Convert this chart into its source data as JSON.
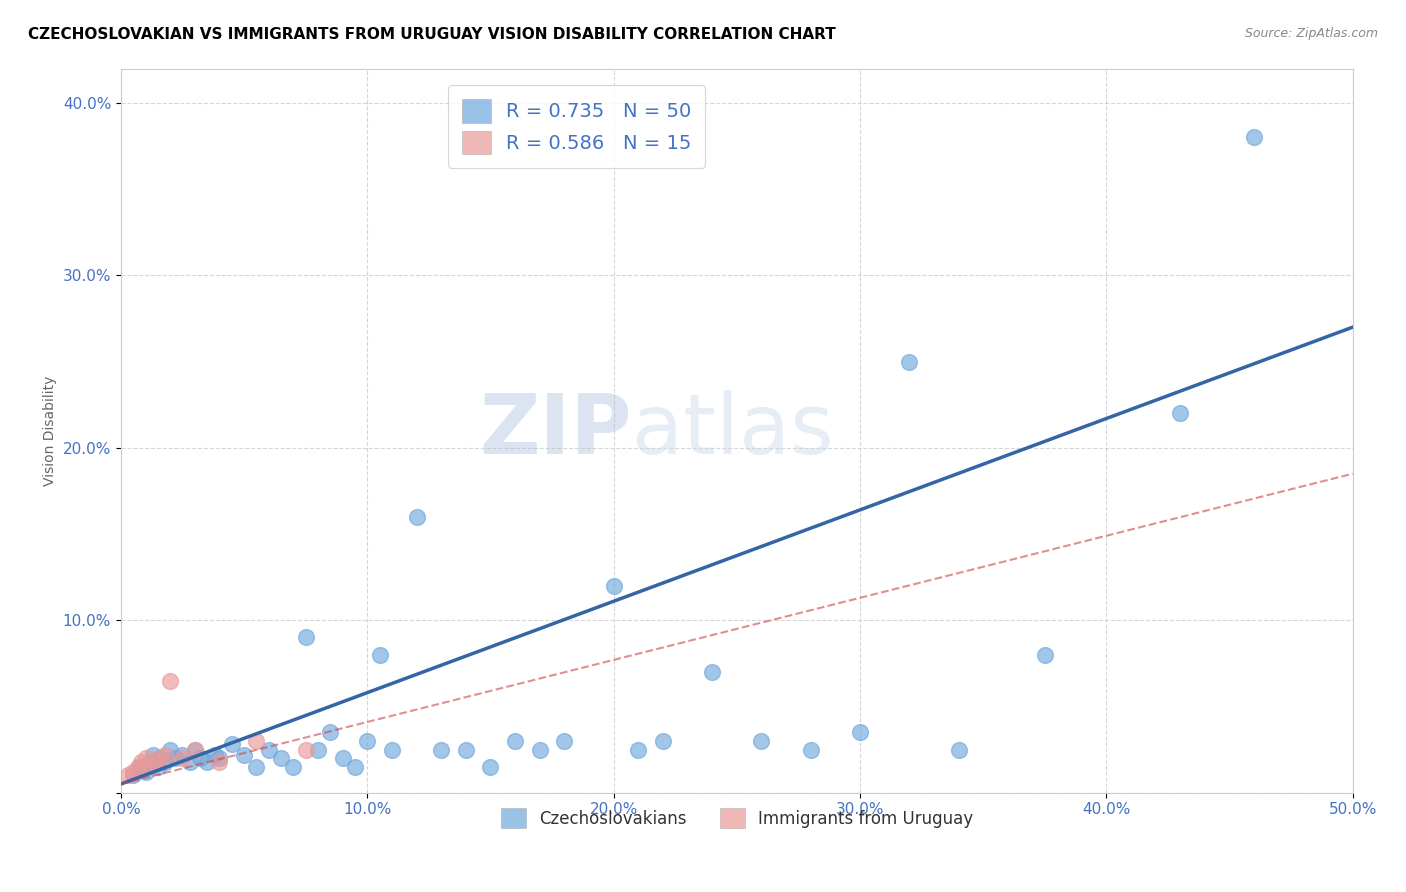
{
  "title": "CZECHOSLOVAKIAN VS IMMIGRANTS FROM URUGUAY VISION DISABILITY CORRELATION CHART",
  "source": "Source: ZipAtlas.com",
  "ylabel": "Vision Disability",
  "xlim": [
    0.0,
    0.5
  ],
  "ylim": [
    0.0,
    0.42
  ],
  "xticks": [
    0.0,
    0.1,
    0.2,
    0.3,
    0.4,
    0.5
  ],
  "yticks": [
    0.0,
    0.1,
    0.2,
    0.3,
    0.4
  ],
  "xticklabels": [
    "0.0%",
    "10.0%",
    "20.0%",
    "30.0%",
    "40.0%",
    "50.0%"
  ],
  "yticklabels": [
    "",
    "10.0%",
    "20.0%",
    "30.0%",
    "40.0%"
  ],
  "blue_color": "#6fa8dc",
  "pink_color": "#ea9999",
  "blue_line_color": "#3465a4",
  "pink_line_color": "#cc4444",
  "legend_r1": "R = 0.735",
  "legend_n1": "N = 50",
  "legend_r2": "R = 0.586",
  "legend_n2": "N = 15",
  "label1": "Czechoslovakians",
  "label2": "Immigrants from Uruguay",
  "watermark_zip": "ZIP",
  "watermark_atlas": "atlas",
  "blue_scatter_x": [
    0.005,
    0.008,
    0.01,
    0.012,
    0.013,
    0.015,
    0.016,
    0.018,
    0.02,
    0.022,
    0.025,
    0.028,
    0.03,
    0.032,
    0.035,
    0.038,
    0.04,
    0.045,
    0.05,
    0.055,
    0.06,
    0.065,
    0.07,
    0.075,
    0.08,
    0.085,
    0.09,
    0.095,
    0.1,
    0.105,
    0.11,
    0.12,
    0.13,
    0.14,
    0.15,
    0.16,
    0.17,
    0.18,
    0.2,
    0.21,
    0.22,
    0.24,
    0.26,
    0.28,
    0.3,
    0.32,
    0.34,
    0.375,
    0.43,
    0.46
  ],
  "blue_scatter_y": [
    0.01,
    0.015,
    0.012,
    0.018,
    0.022,
    0.015,
    0.02,
    0.018,
    0.025,
    0.02,
    0.022,
    0.018,
    0.025,
    0.02,
    0.018,
    0.022,
    0.02,
    0.028,
    0.022,
    0.015,
    0.025,
    0.02,
    0.015,
    0.09,
    0.025,
    0.035,
    0.02,
    0.015,
    0.03,
    0.08,
    0.025,
    0.16,
    0.025,
    0.025,
    0.015,
    0.03,
    0.025,
    0.03,
    0.12,
    0.025,
    0.03,
    0.07,
    0.03,
    0.025,
    0.035,
    0.25,
    0.025,
    0.08,
    0.22,
    0.38
  ],
  "pink_scatter_x": [
    0.003,
    0.005,
    0.007,
    0.008,
    0.01,
    0.012,
    0.014,
    0.016,
    0.018,
    0.02,
    0.025,
    0.03,
    0.04,
    0.055,
    0.075
  ],
  "pink_scatter_y": [
    0.01,
    0.012,
    0.015,
    0.018,
    0.02,
    0.015,
    0.018,
    0.02,
    0.022,
    0.065,
    0.02,
    0.025,
    0.018,
    0.03,
    0.025
  ],
  "blue_trendline_x": [
    0.0,
    0.5
  ],
  "blue_trendline_y": [
    0.005,
    0.27
  ],
  "pink_trendline_x": [
    0.0,
    0.5
  ],
  "pink_trendline_y": [
    0.005,
    0.185
  ],
  "grid_color": "#cccccc",
  "background_color": "#ffffff",
  "title_color": "#000000",
  "axis_tick_color": "#4472c4",
  "axis_tick_fontsize": 11,
  "title_fontsize": 11,
  "ylabel_fontsize": 10,
  "watermark_zip_color": "#b0c4de",
  "watermark_atlas_color": "#c8d8e8",
  "watermark_fontsize": 60
}
